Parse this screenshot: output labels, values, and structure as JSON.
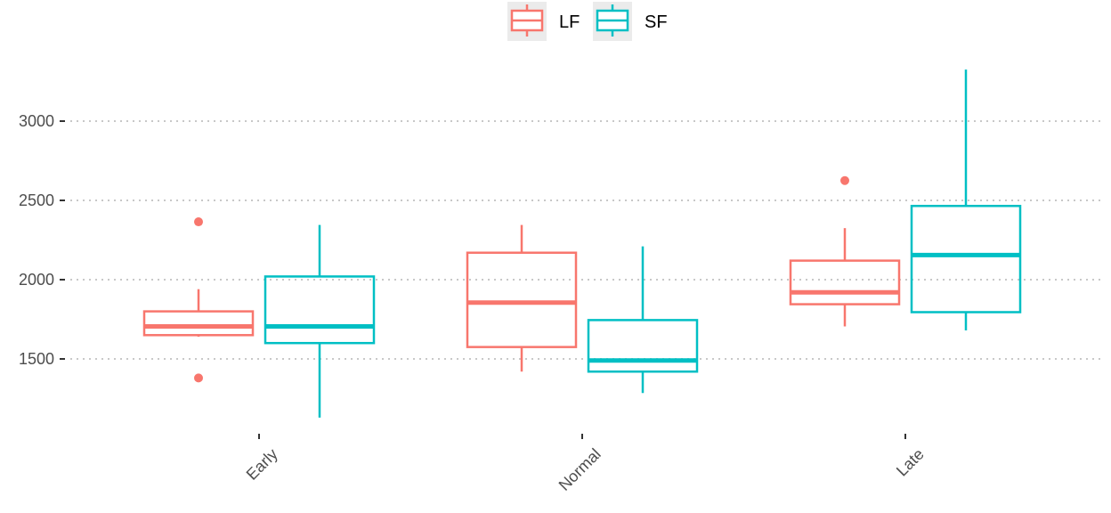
{
  "chart_data": {
    "type": "boxplot",
    "categories": [
      "Early",
      "Normal",
      "Late"
    ],
    "ylim": [
      1030,
      3330
    ],
    "yticks": [
      1500,
      2000,
      2500,
      3000
    ],
    "grid": "horizontal-dotted",
    "legend_position": "top",
    "series": [
      {
        "name": "LF",
        "color": "#F8766D",
        "boxes": [
          {
            "category": "Early",
            "whisker_low": 1640,
            "q1": 1650,
            "median": 1705,
            "q3": 1800,
            "whisker_high": 1940,
            "outliers": [
              1380,
              2365
            ]
          },
          {
            "category": "Normal",
            "whisker_low": 1420,
            "q1": 1575,
            "median": 1855,
            "q3": 2170,
            "whisker_high": 2345,
            "outliers": []
          },
          {
            "category": "Late",
            "whisker_low": 1705,
            "q1": 1845,
            "median": 1920,
            "q3": 2120,
            "whisker_high": 2325,
            "outliers": [
              2625
            ]
          }
        ]
      },
      {
        "name": "SF",
        "color": "#00BFC4",
        "boxes": [
          {
            "category": "Early",
            "whisker_low": 1130,
            "q1": 1600,
            "median": 1705,
            "q3": 2020,
            "whisker_high": 2345,
            "outliers": []
          },
          {
            "category": "Normal",
            "whisker_low": 1285,
            "q1": 1420,
            "median": 1490,
            "q3": 1745,
            "whisker_high": 2210,
            "outliers": []
          },
          {
            "category": "Late",
            "whisker_low": 1680,
            "q1": 1795,
            "median": 2155,
            "q3": 2465,
            "whisker_high": 3325,
            "outliers": []
          }
        ]
      }
    ]
  }
}
